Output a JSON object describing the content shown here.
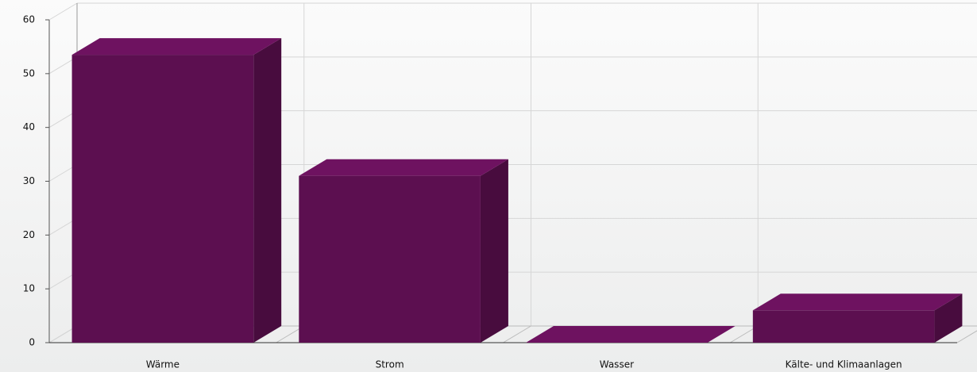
{
  "chart_data": {
    "type": "bar3d",
    "categories": [
      "Wärme",
      "Strom",
      "Wasser",
      "Kälte- und Klimaanlagen"
    ],
    "values": [
      53.5,
      31,
      0,
      6
    ],
    "color": "#5c0f50",
    "ylim": [
      0,
      60
    ],
    "yticks": [
      0,
      10,
      20,
      30,
      40,
      50,
      60
    ],
    "grid": true
  }
}
